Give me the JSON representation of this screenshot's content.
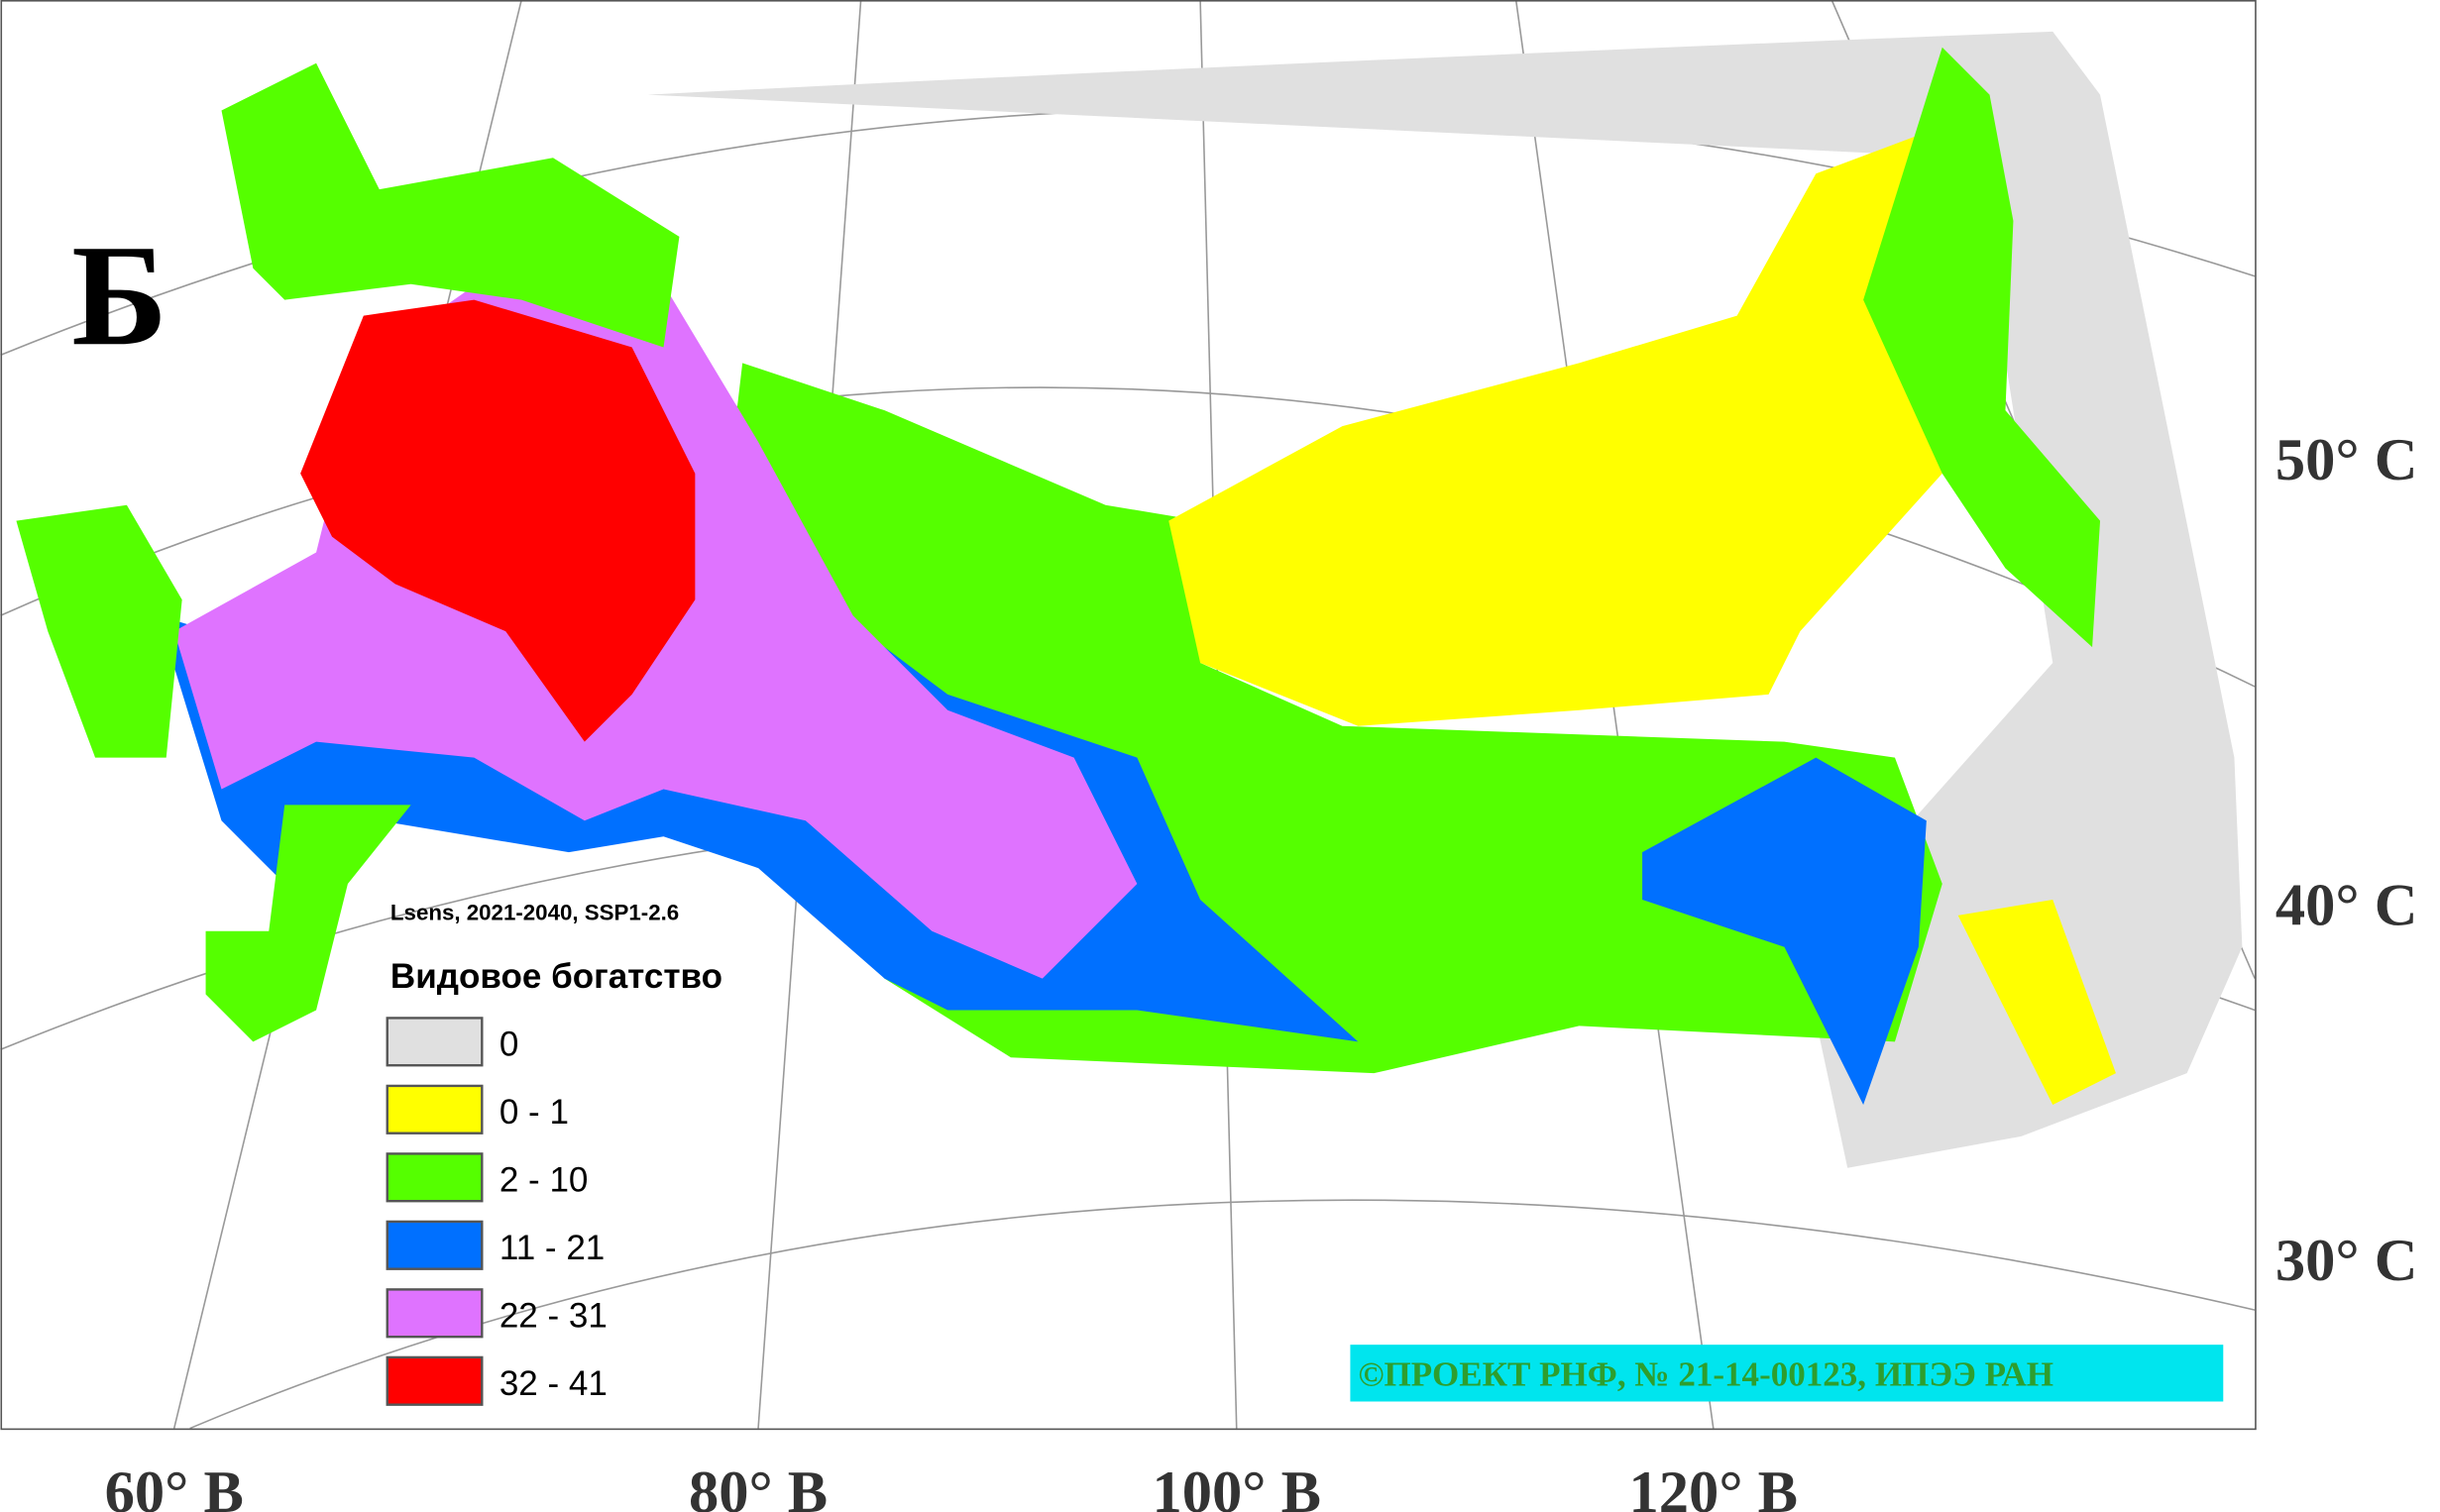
{
  "panel_label": "Б",
  "legend": {
    "subtitle": "Lsens, 2021-2040, SSP1-2.6",
    "title": "Видовое богатство",
    "items": [
      {
        "label": "0",
        "color": "#e0e0e0"
      },
      {
        "label": "0 - 1",
        "color": "#ffff00"
      },
      {
        "label": "2 - 10",
        "color": "#55ff00"
      },
      {
        "label": "11 - 21",
        "color": "#0070ff"
      },
      {
        "label": "22 - 31",
        "color": "#df73ff"
      },
      {
        "label": "32 - 41",
        "color": "#ff0000"
      }
    ]
  },
  "axis_labels": {
    "longitude": [
      "60° В",
      "80° В",
      "100° В",
      "120° В"
    ],
    "latitude": [
      "50° С",
      "40° С",
      "30° С"
    ]
  },
  "credit": "©ПРОЕКТ РНФ, № 21-14-00123, ИПЭЭ РАН"
}
